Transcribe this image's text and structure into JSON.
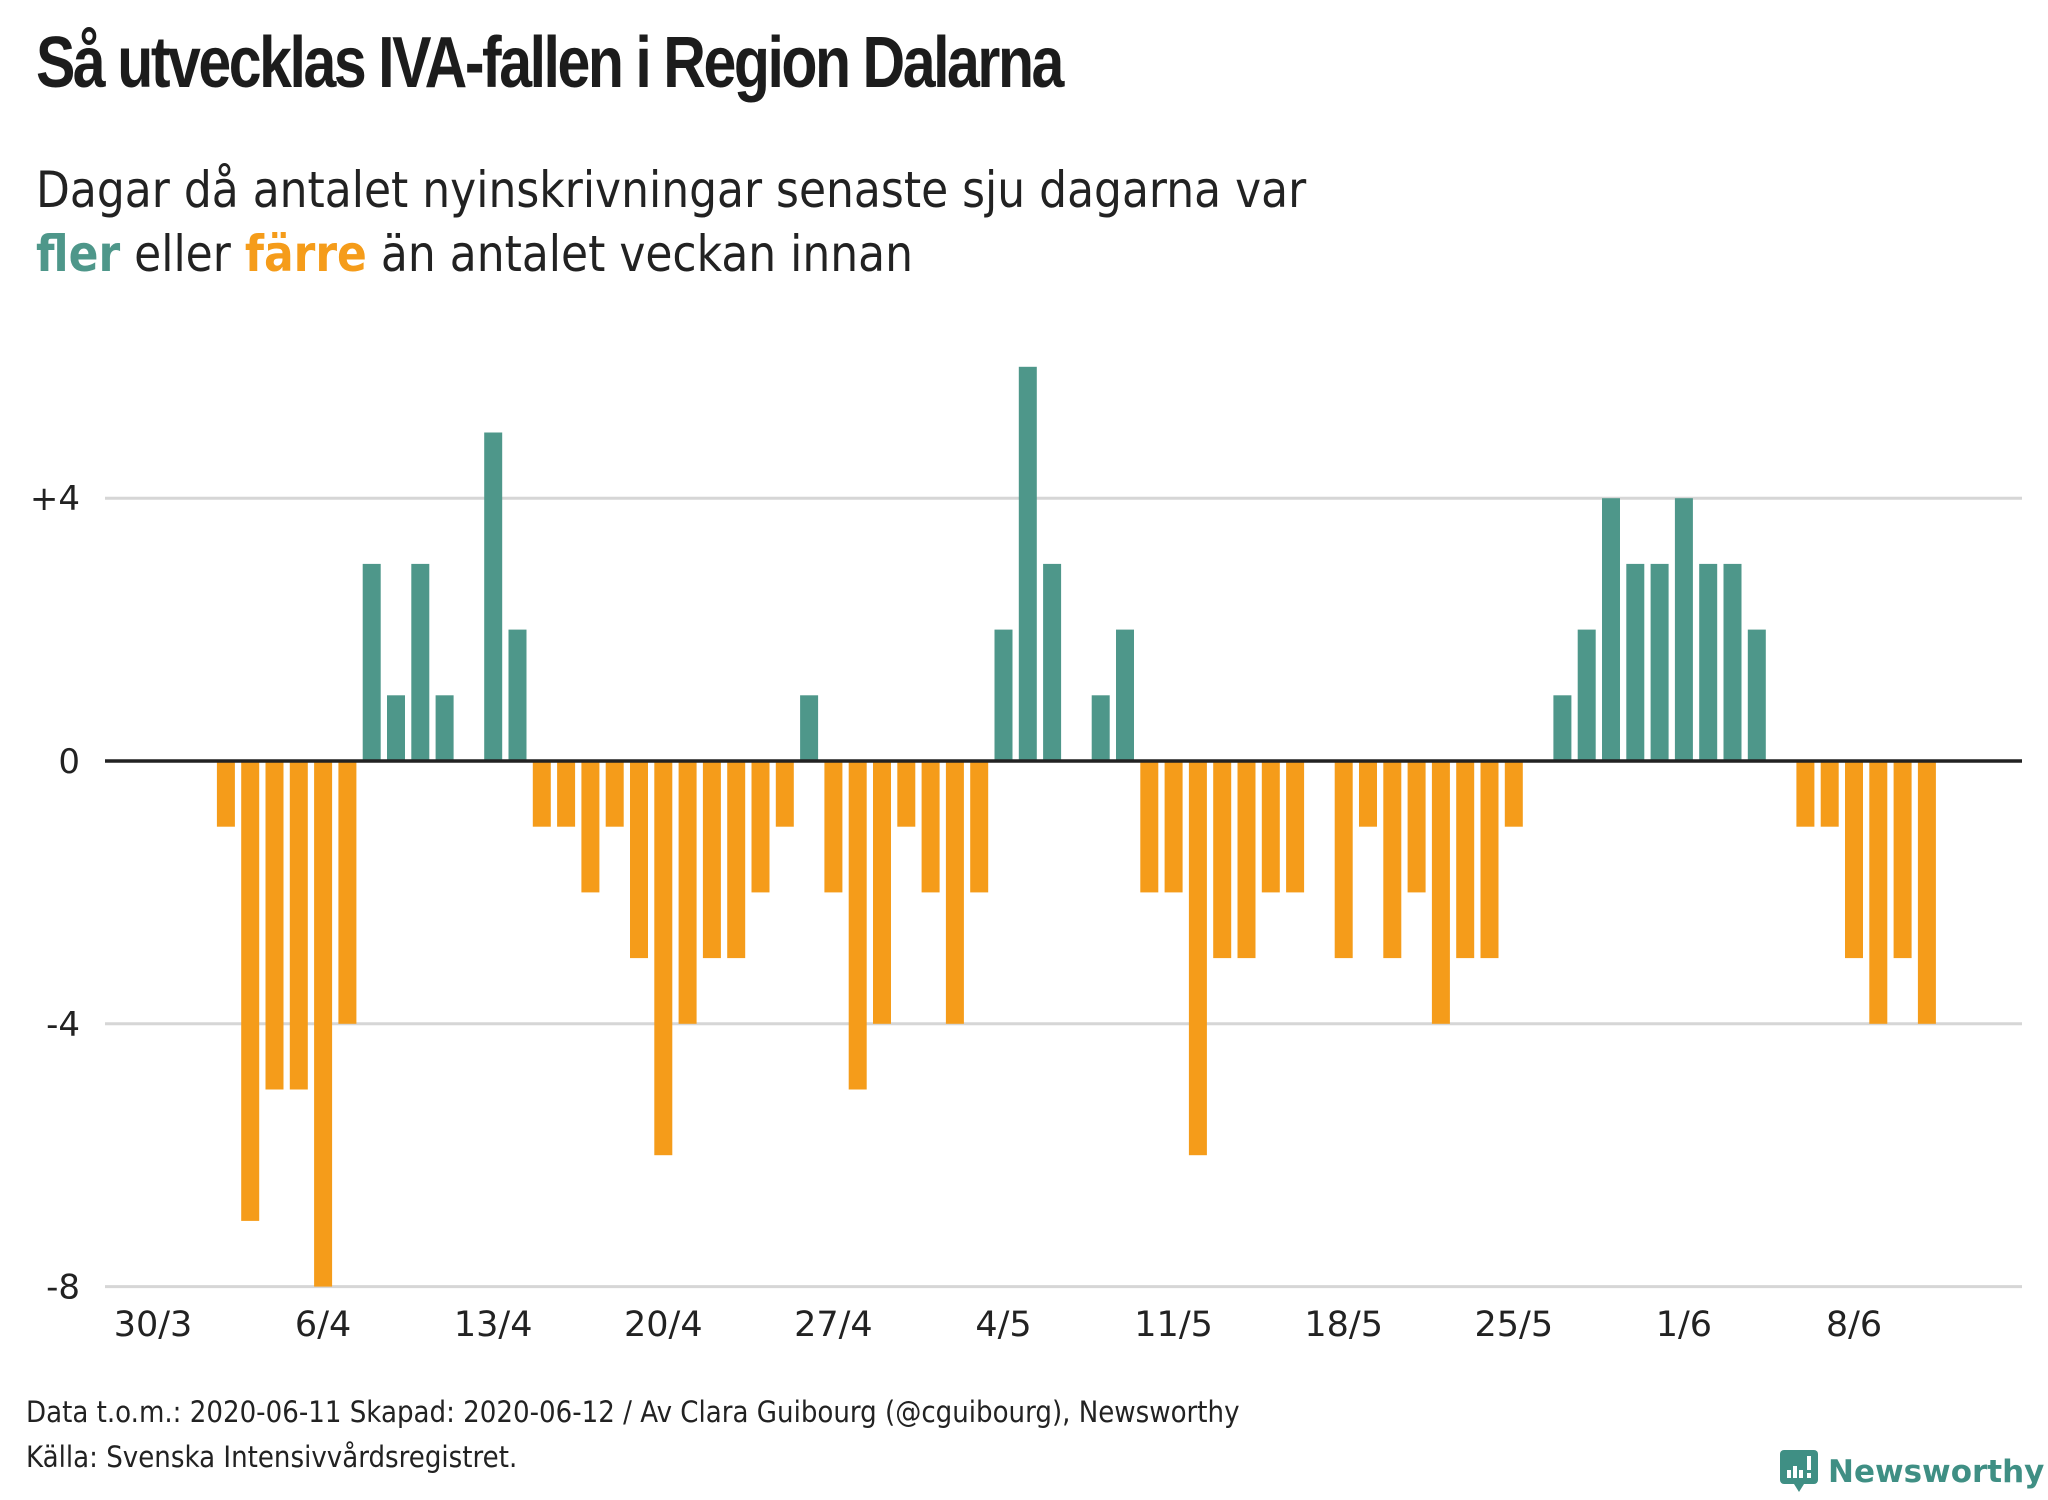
{
  "header": {
    "title": "Så utvecklas IVA-fallen i Region Dalarna",
    "subtitle_line1": "Dagar då antalet nyinskrivningar senaste sju dagarna var",
    "subtitle_more": "fler",
    "subtitle_or": " eller ",
    "subtitle_fewer": "färre",
    "subtitle_rest": " än antalet veckan innan"
  },
  "colors": {
    "more": "#4E978A",
    "fewer": "#F59C1A",
    "zero_line": "#222222",
    "grid": "#d6d6d6"
  },
  "footer": {
    "line1": "Data t.o.m.: 2020-06-11 Skapad: 2020-06-12 / Av Clara Guibourg (@cguibourg), Newsworthy",
    "line2": "Källa: Svenska Intensivvårdsregistret."
  },
  "logo": {
    "text": "Newsworthy"
  },
  "chart_data": {
    "type": "bar",
    "title": "Så utvecklas IVA-fallen i Region Dalarna",
    "xlabel": "",
    "ylabel": "",
    "ylim": [
      -8,
      6
    ],
    "grid": true,
    "yticks": [
      4,
      0,
      -4,
      -8
    ],
    "ytick_labels": [
      "+4",
      "0",
      "-4",
      "-8"
    ],
    "xtick_labels": [
      "30/3",
      "6/4",
      "13/4",
      "20/4",
      "27/4",
      "4/5",
      "11/5",
      "18/5",
      "25/5",
      "1/6",
      "8/6"
    ],
    "xtick_index": [
      0,
      7,
      14,
      21,
      28,
      35,
      42,
      49,
      56,
      63,
      70
    ],
    "categories": [
      "30/3",
      "31/3",
      "1/4",
      "2/4",
      "3/4",
      "4/4",
      "5/4",
      "6/4",
      "7/4",
      "8/4",
      "9/4",
      "10/4",
      "11/4",
      "12/4",
      "13/4",
      "14/4",
      "15/4",
      "16/4",
      "17/4",
      "18/4",
      "19/4",
      "20/4",
      "21/4",
      "22/4",
      "23/4",
      "24/4",
      "25/4",
      "26/4",
      "27/4",
      "28/4",
      "29/4",
      "30/4",
      "1/5",
      "2/5",
      "3/5",
      "4/5",
      "5/5",
      "6/5",
      "7/5",
      "8/5",
      "9/5",
      "10/5",
      "11/5",
      "12/5",
      "13/5",
      "14/5",
      "15/5",
      "16/5",
      "17/5",
      "18/5",
      "19/5",
      "20/5",
      "21/5",
      "22/5",
      "23/5",
      "24/5",
      "25/5",
      "26/5",
      "27/5",
      "28/5",
      "29/5",
      "30/5",
      "31/5",
      "1/6",
      "2/6",
      "3/6",
      "4/6",
      "5/6",
      "6/6",
      "7/6",
      "8/6",
      "9/6",
      "10/6",
      "11/6"
    ],
    "values": [
      0,
      0,
      0,
      -1,
      -7,
      -5,
      -5,
      -8,
      -4,
      3,
      1,
      3,
      1,
      0,
      5,
      2,
      -1,
      -1,
      -2,
      -1,
      -3,
      -6,
      -4,
      -3,
      -3,
      -2,
      -1,
      1,
      -2,
      -5,
      -4,
      -1,
      -2,
      -4,
      -2,
      2,
      6,
      3,
      0,
      1,
      2,
      -2,
      -2,
      -6,
      -3,
      -3,
      -2,
      -2,
      0,
      -3,
      -1,
      -3,
      -2,
      -4,
      -3,
      -3,
      -1,
      0,
      1,
      2,
      4,
      3,
      3,
      4,
      3,
      3,
      2,
      0,
      -1,
      -1,
      -3,
      -4,
      -3,
      -4
    ]
  }
}
